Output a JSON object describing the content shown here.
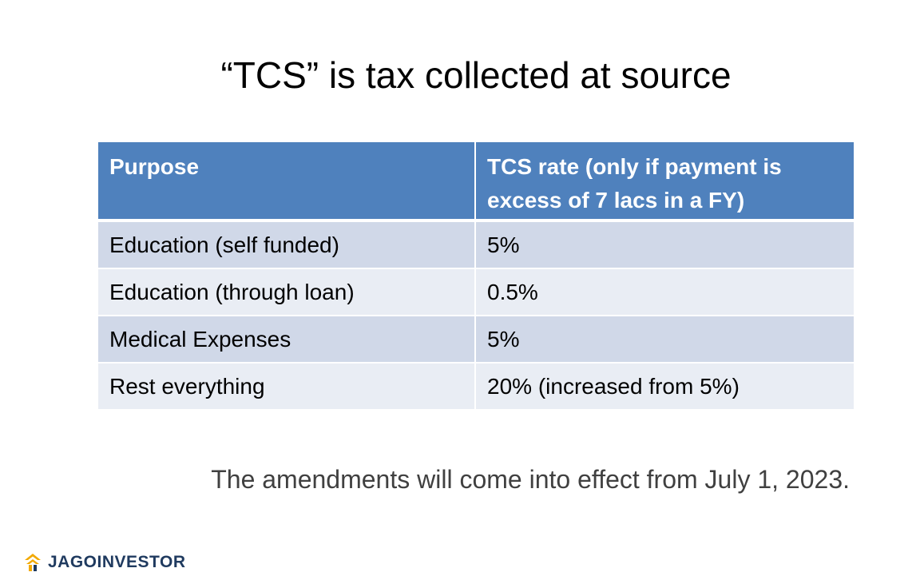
{
  "slide": {
    "title": "“TCS” is tax collected at source",
    "footnote": "The amendments will come into effect from July 1, 2023."
  },
  "table": {
    "headers": [
      "Purpose",
      "TCS rate (only if payment is excess of 7 lacs in a FY)"
    ],
    "rows": [
      [
        "Education (self funded)",
        "5%"
      ],
      [
        "Education (through loan)",
        "0.5%"
      ],
      [
        "Medical Expenses",
        "5%"
      ],
      [
        "Rest everything",
        "20% (increased from 5%)"
      ]
    ]
  },
  "brand": {
    "name": "JAGOINVESTOR",
    "logo_icon": "house-arrow-logo-icon",
    "logo_color": "#f2a900"
  },
  "colors": {
    "header_bg": "#4f81bd",
    "row_odd_bg": "#d0d8e8",
    "row_even_bg": "#e9edf4"
  }
}
